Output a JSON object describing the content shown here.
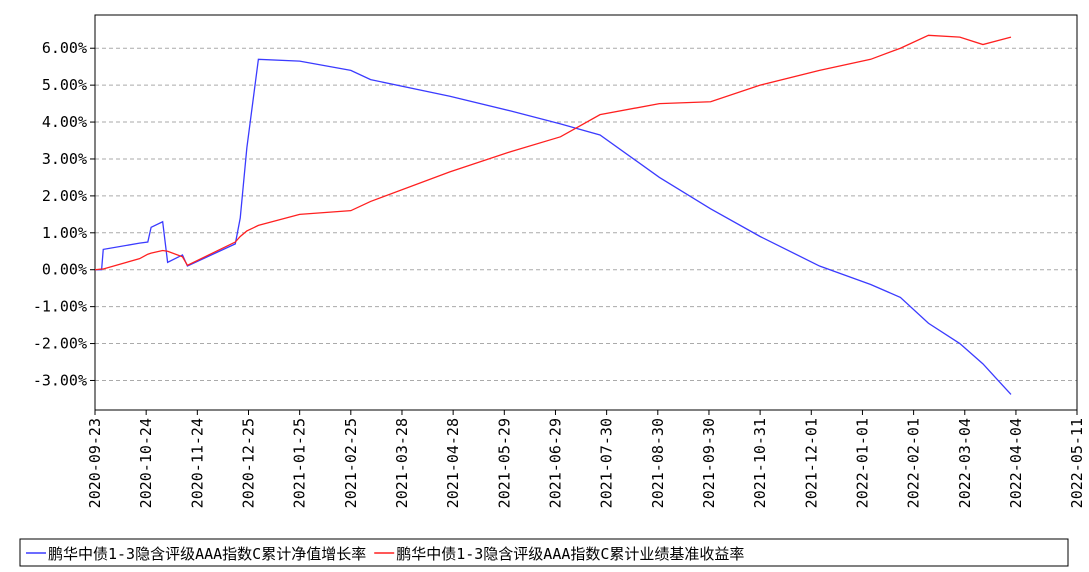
{
  "chart_data": {
    "type": "line",
    "x": [
      "2020-09-23",
      "2020-09-27",
      "2020-09-28",
      "2020-10-20",
      "2020-10-25",
      "2020-10-27",
      "2020-11-03",
      "2020-11-06",
      "2020-11-15",
      "2020-11-18",
      "2020-12-17",
      "2020-12-20",
      "2020-12-24",
      "2020-12-31",
      "2021-01-25",
      "2021-02-25",
      "2021-03-09",
      "2021-04-26",
      "2021-06-02",
      "2021-07-02",
      "2021-07-26",
      "2021-08-31",
      "2021-10-01",
      "2021-10-31",
      "2021-12-06",
      "2022-01-06",
      "2022-01-24",
      "2022-02-10",
      "2022-03-01",
      "2022-03-15",
      "2022-04-01"
    ],
    "series": [
      {
        "name": "鹏华中债1-3隐含评级AAA指数C累计净值增长率",
        "color": "#3b3bff",
        "values": [
          0.0,
          0.0,
          0.55,
          0.72,
          0.75,
          1.15,
          1.3,
          0.2,
          0.4,
          0.1,
          0.7,
          1.4,
          3.3,
          5.7,
          5.65,
          5.4,
          5.15,
          4.7,
          4.3,
          3.95,
          3.65,
          2.5,
          1.65,
          0.9,
          0.1,
          -0.4,
          -0.75,
          -1.45,
          -2.0,
          -2.55,
          -3.38
        ]
      },
      {
        "name": "鹏华中债1-3隐含评级AAA指数C累计业绩基准收益率",
        "color": "#ff2020",
        "values": [
          0.0,
          0.02,
          0.02,
          0.3,
          0.42,
          0.45,
          0.52,
          0.5,
          0.35,
          0.12,
          0.75,
          0.9,
          1.05,
          1.2,
          1.5,
          1.6,
          1.85,
          2.65,
          3.2,
          3.6,
          4.2,
          4.5,
          4.55,
          5.0,
          5.4,
          5.7,
          6.0,
          6.35,
          6.3,
          6.1,
          6.3
        ]
      }
    ],
    "xlim": [
      "2020-09-23",
      "2022-05-11"
    ],
    "xticks": [
      "2020-09-23",
      "2020-10-24",
      "2020-11-24",
      "2020-12-25",
      "2021-01-25",
      "2021-02-25",
      "2021-03-28",
      "2021-04-28",
      "2021-05-29",
      "2021-06-29",
      "2021-07-30",
      "2021-08-30",
      "2021-09-30",
      "2021-10-31",
      "2021-12-01",
      "2022-01-01",
      "2022-02-01",
      "2022-03-04",
      "2022-04-04",
      "2022-05-11"
    ],
    "ylim": [
      -3.8,
      6.9
    ],
    "yticks": [
      {
        "value": -3,
        "label": "-3.00%"
      },
      {
        "value": -2,
        "label": "-2.00%"
      },
      {
        "value": -1,
        "label": "-1.00%"
      },
      {
        "value": 0,
        "label": "0.00%"
      },
      {
        "value": 1,
        "label": "1.00%"
      },
      {
        "value": 2,
        "label": "2.00%"
      },
      {
        "value": 3,
        "label": "3.00%"
      },
      {
        "value": 4,
        "label": "4.00%"
      },
      {
        "value": 5,
        "label": "5.00%"
      },
      {
        "value": 6,
        "label": "6.00%"
      }
    ],
    "grid": true
  }
}
